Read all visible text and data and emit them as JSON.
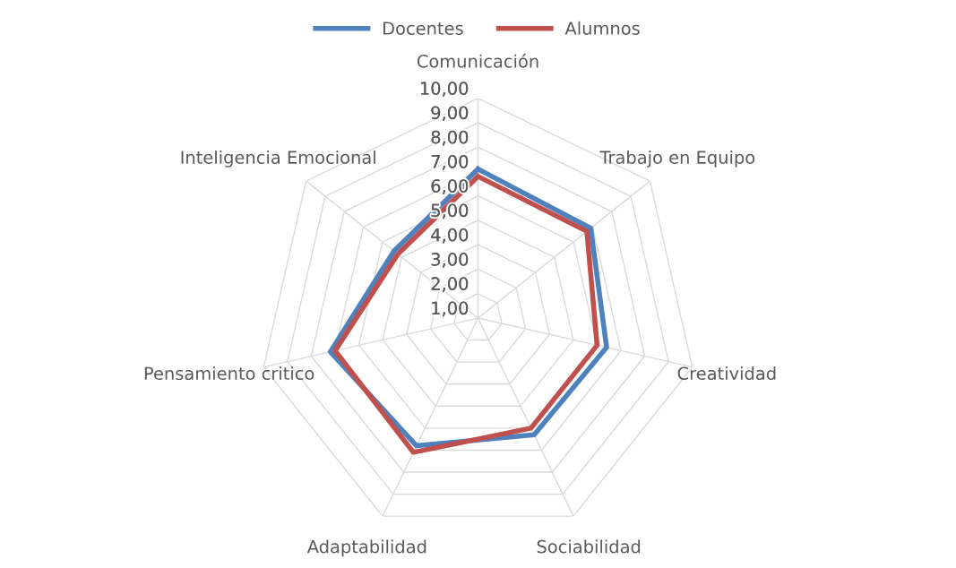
{
  "chart_data": {
    "type": "radar",
    "categories": [
      "Comunicación",
      "Trabajo en Equipo",
      "Creatividad",
      "Sociabilidad",
      "Adaptabilidad",
      "Pensamiento critico",
      "Inteligencia Emocional"
    ],
    "series": [
      {
        "name": "Docentes",
        "color": "#4f81bd",
        "values": [
          7.1,
          6.9,
          6.4,
          6.3,
          6.8,
          7.2,
          5.4
        ]
      },
      {
        "name": "Alumnos",
        "color": "#c0504d",
        "values": [
          6.8,
          6.7,
          6.0,
          6.0,
          7.1,
          7.0,
          5.2
        ]
      }
    ],
    "ylim": [
      1,
      10
    ],
    "yticks": [
      {
        "value": 1,
        "label": "1,00"
      },
      {
        "value": 2,
        "label": "2,00"
      },
      {
        "value": 3,
        "label": "3,00"
      },
      {
        "value": 4,
        "label": "4,00"
      },
      {
        "value": 5,
        "label": "5,00"
      },
      {
        "value": 6,
        "label": "6,00"
      },
      {
        "value": 7,
        "label": "7,00"
      },
      {
        "value": 8,
        "label": "8,00"
      },
      {
        "value": 9,
        "label": "9,00"
      },
      {
        "value": 10,
        "label": "10,00"
      }
    ],
    "grid": true,
    "legend": "top",
    "marker": "none",
    "line_style": "solid"
  }
}
